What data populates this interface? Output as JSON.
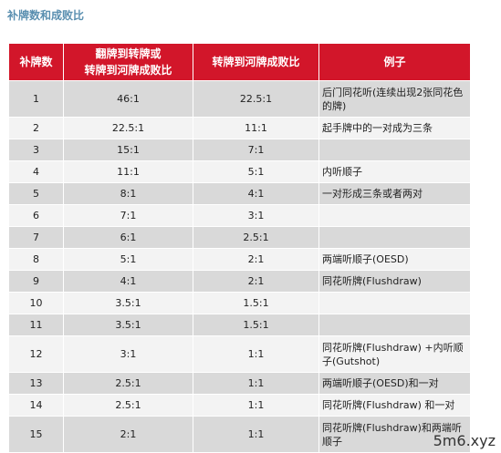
{
  "caption": "补牌数和成败比",
  "table": {
    "headers": [
      "补牌数",
      "翻牌到转牌或\n转牌到河牌成败比",
      "转牌到河牌成败比",
      "例子"
    ],
    "rows": [
      {
        "n": "1",
        "a": "46:1",
        "b": "22.5:1",
        "ex": "后门同花听(连续出现2张同花色的牌)"
      },
      {
        "n": "2",
        "a": "22.5:1",
        "b": "11:1",
        "ex": "起手牌中的一对成为三条"
      },
      {
        "n": "3",
        "a": "15:1",
        "b": "7:1",
        "ex": ""
      },
      {
        "n": "4",
        "a": "11:1",
        "b": "5:1",
        "ex": "内听顺子"
      },
      {
        "n": "5",
        "a": "8:1",
        "b": "4:1",
        "ex": "一对形成三条或者两对"
      },
      {
        "n": "6",
        "a": "7:1",
        "b": "3:1",
        "ex": ""
      },
      {
        "n": "7",
        "a": "6:1",
        "b": "2.5:1",
        "ex": ""
      },
      {
        "n": "8",
        "a": "5:1",
        "b": "2:1",
        "ex": "两端听顺子(OESD)"
      },
      {
        "n": "9",
        "a": "4:1",
        "b": "2:1",
        "ex": "同花听牌(Flushdraw)"
      },
      {
        "n": "10",
        "a": "3.5:1",
        "b": "1.5:1",
        "ex": ""
      },
      {
        "n": "11",
        "a": "3.5:1",
        "b": "1.5:1",
        "ex": ""
      },
      {
        "n": "12",
        "a": "3:1",
        "b": "1:1",
        "ex": "同花听牌(Flushdraw) +内听顺子(Gutshot)"
      },
      {
        "n": "13",
        "a": "2.5:1",
        "b": "1:1",
        "ex": "两端听顺子(OESD)和一对"
      },
      {
        "n": "14",
        "a": "2.5:1",
        "b": "1:1",
        "ex": "同花听牌(Flushdraw) 和一对"
      },
      {
        "n": "15",
        "a": "2:1",
        "b": "1:1",
        "ex": "同花听牌(Flushdraw)和两端听顺子"
      }
    ]
  },
  "watermark": {
    "logo_text": "撲克迷",
    "site_text": "5m6.xyz"
  },
  "colors": {
    "header_bg": "#d2162a",
    "row_odd": "#d9d9d9",
    "row_even": "#f3f3f3",
    "caption": "#5a8fb0"
  }
}
